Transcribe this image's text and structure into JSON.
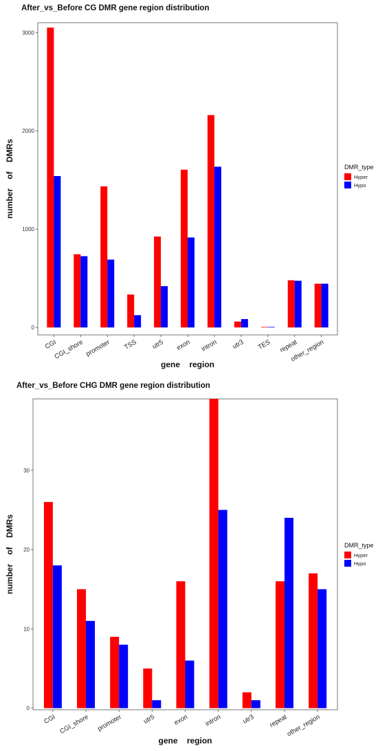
{
  "chart_data": [
    {
      "type": "bar",
      "title": "After_vs_Before  CG  DMR  gene region  distribution",
      "xlabel": "gene    region",
      "ylabel": "number    of    DMRs",
      "categories": [
        "CGI",
        "CGI_shore",
        "promoter",
        "TSS",
        "utr5",
        "exon",
        "intron",
        "utr3",
        "TES",
        "repeat",
        "other_region"
      ],
      "series": [
        {
          "name": "Hyper",
          "color": "#ff0000",
          "values": [
            3050,
            745,
            1435,
            335,
            925,
            1605,
            2160,
            60,
            5,
            480,
            445
          ]
        },
        {
          "name": "Hypo",
          "color": "#0000ff",
          "values": [
            1540,
            725,
            690,
            125,
            420,
            915,
            1635,
            85,
            5,
            475,
            445
          ]
        }
      ],
      "yticks": [
        0,
        1000,
        2000,
        3000
      ],
      "ylim": [
        -76,
        3100
      ],
      "legend_title": "DMR_type",
      "legend_position": "right",
      "grid": false
    },
    {
      "type": "bar",
      "title": "After_vs_Before  CHG  DMR  gene region  distribution",
      "xlabel": "gene    region",
      "ylabel": "number    of    DMRs",
      "categories": [
        "CGI",
        "CGI_shore",
        "promoter",
        "utr5",
        "exon",
        "intron",
        "utr3",
        "repeat",
        "other_region"
      ],
      "series": [
        {
          "name": "Hyper",
          "color": "#ff0000",
          "values": [
            26,
            15,
            9,
            5,
            16,
            39,
            2,
            16,
            17
          ]
        },
        {
          "name": "Hypo",
          "color": "#0000ff",
          "values": [
            18,
            11,
            8,
            1,
            6,
            25,
            1,
            24,
            15
          ]
        }
      ],
      "yticks": [
        0,
        10,
        20,
        30
      ],
      "ylim": [
        -0.2,
        39
      ],
      "legend_title": "DMR_type",
      "legend_position": "right",
      "grid": false
    }
  ]
}
